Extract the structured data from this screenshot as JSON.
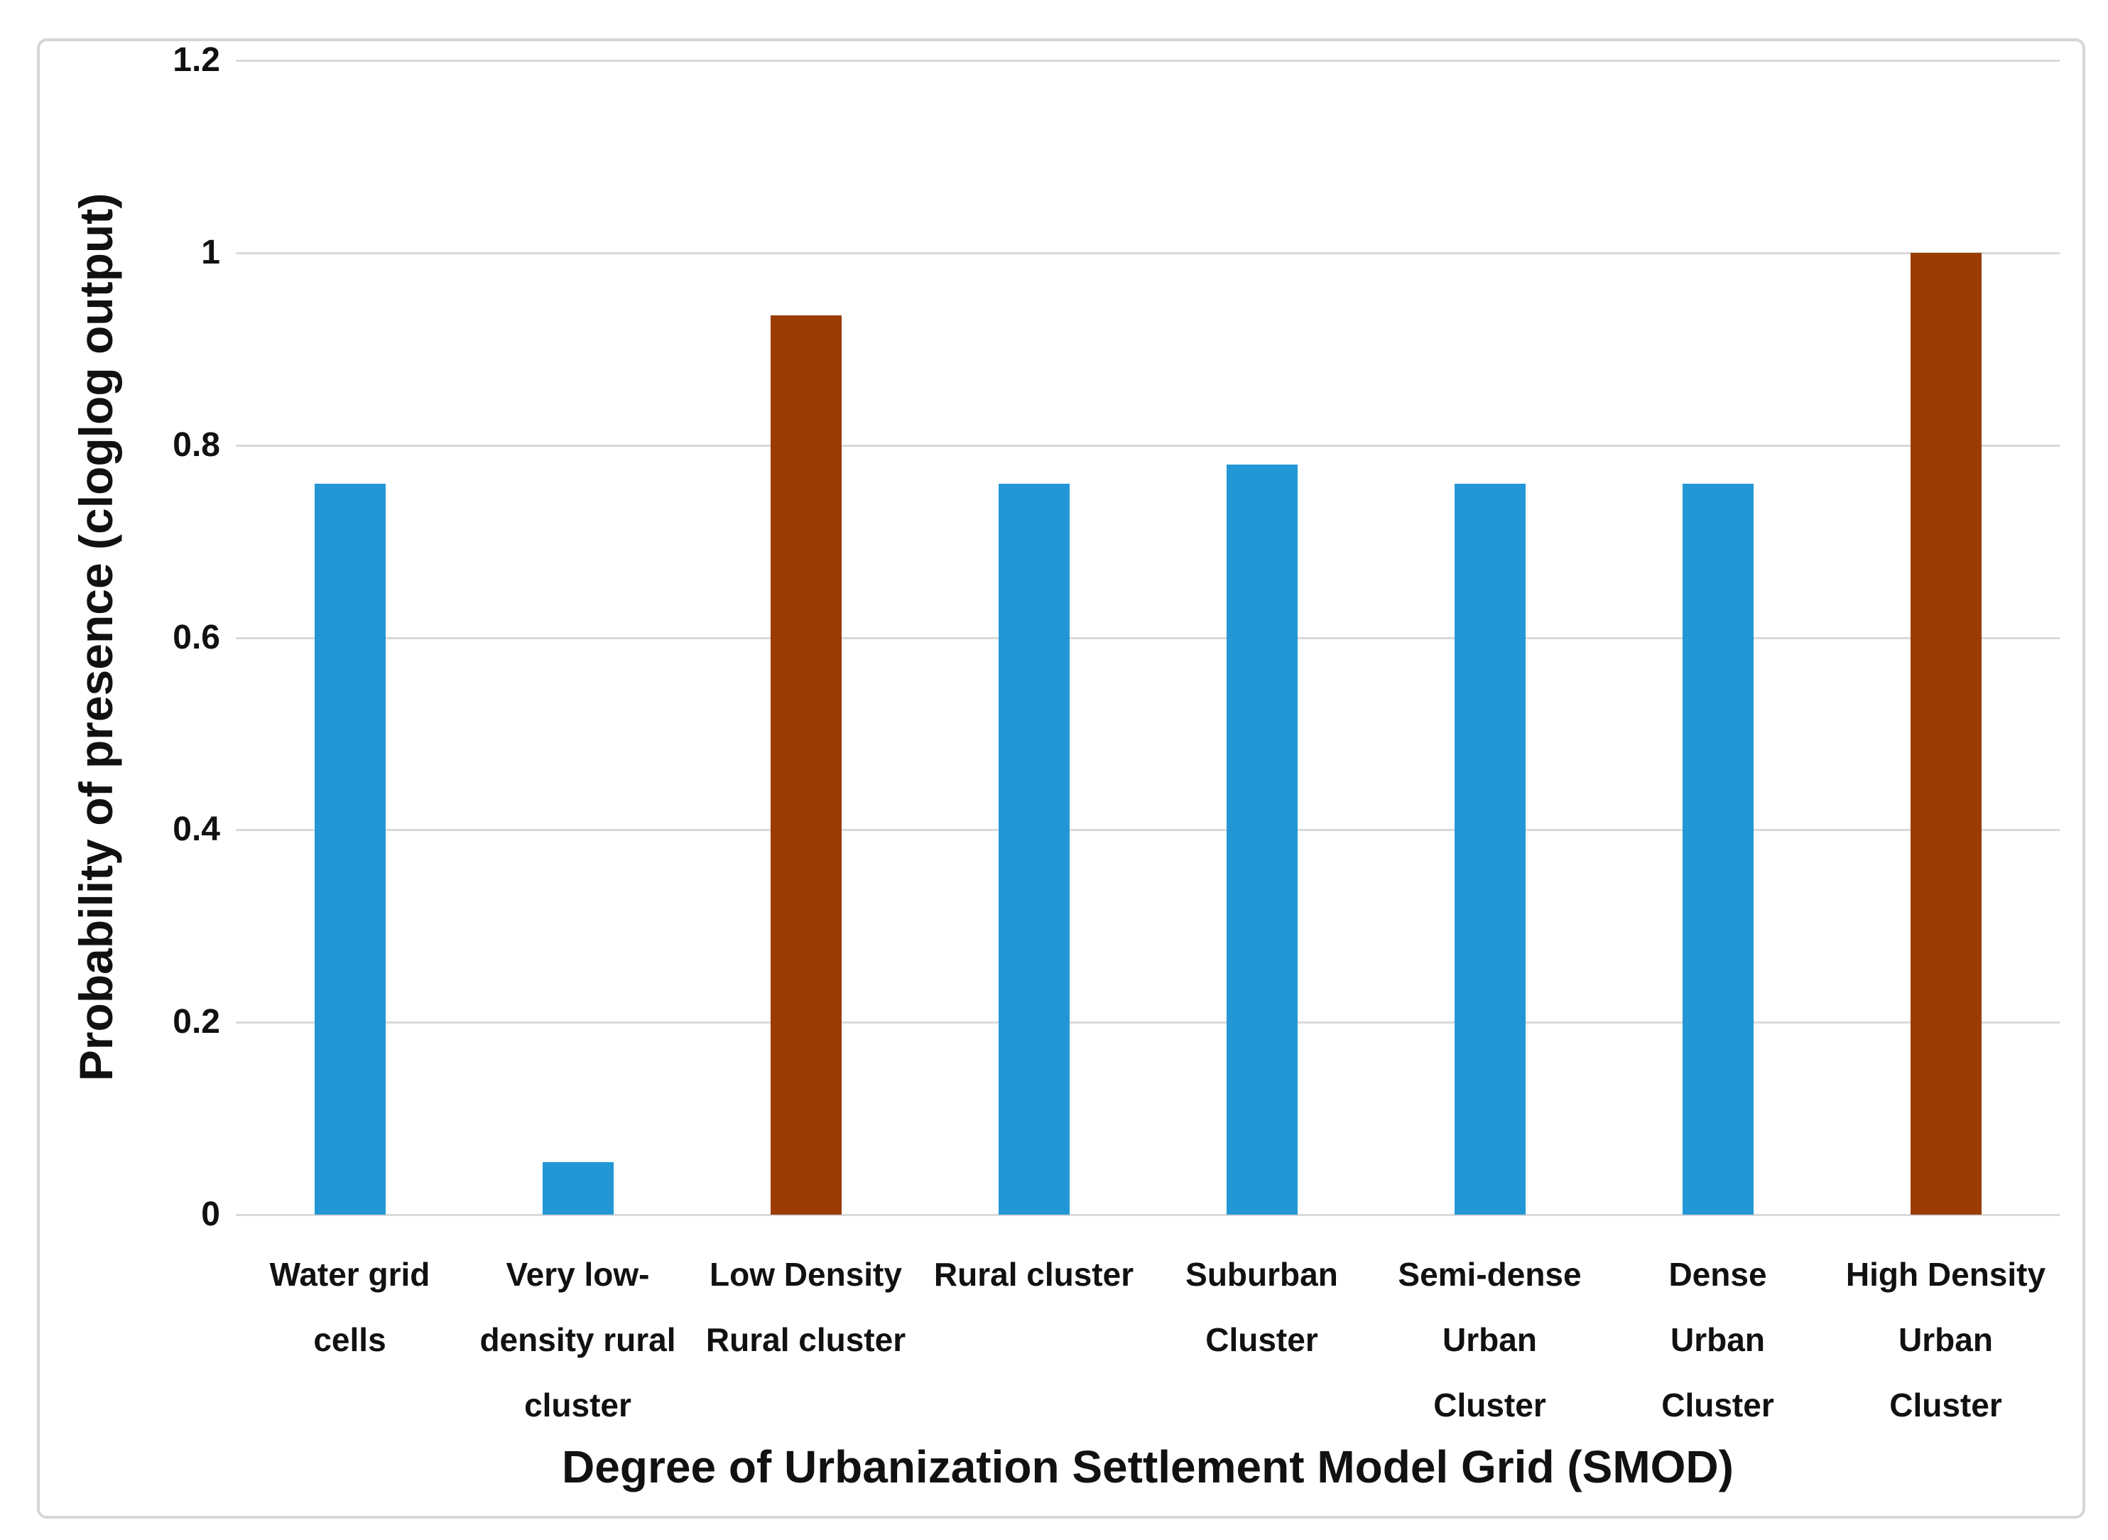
{
  "figure": {
    "background_color": "#ffffff",
    "frame_color": "#d6d6d6"
  },
  "chart_data": {
    "type": "bar",
    "title": "",
    "xlabel": "Degree of Urbanization Settlement Model Grid (SMOD)",
    "ylabel": "Probability of presence (cloglog output)",
    "ylim": [
      0,
      1.2
    ],
    "yticks": [
      0,
      0.2,
      0.4,
      0.6,
      0.8,
      1,
      1.2
    ],
    "ytick_labels": [
      "0",
      "0.2",
      "0.4",
      "0.6",
      "0.8",
      "1",
      "1.2"
    ],
    "grid": "horizontal",
    "gridline_color": "#d9d9d9",
    "legend": "none",
    "categories": [
      "Water grid cells",
      "Very low-density rural cluster",
      "Low Density Rural cluster",
      "Rural cluster",
      "Suburban Cluster",
      "Semi-dense Urban Cluster",
      "Dense Urban Cluster",
      "High Density Urban Cluster"
    ],
    "category_label_lines": [
      [
        "Water grid",
        "cells"
      ],
      [
        "Very low-",
        "density rural",
        "cluster"
      ],
      [
        "Low Density",
        "Rural cluster"
      ],
      [
        "Rural cluster"
      ],
      [
        "Suburban",
        "Cluster"
      ],
      [
        "Semi-dense",
        "Urban",
        "Cluster"
      ],
      [
        "Dense",
        "Urban",
        "Cluster"
      ],
      [
        "High Density",
        "Urban",
        "Cluster"
      ]
    ],
    "values": [
      0.76,
      0.055,
      0.935,
      0.76,
      0.78,
      0.76,
      0.76,
      1.0
    ],
    "bar_colors": [
      "#2397d5",
      "#2397d5",
      "#9a3c04",
      "#2397d5",
      "#2397d5",
      "#2397d5",
      "#2397d5",
      "#9a3c04"
    ],
    "series_colors": {
      "blue": "#2397d5",
      "brown": "#9a3c04"
    }
  }
}
